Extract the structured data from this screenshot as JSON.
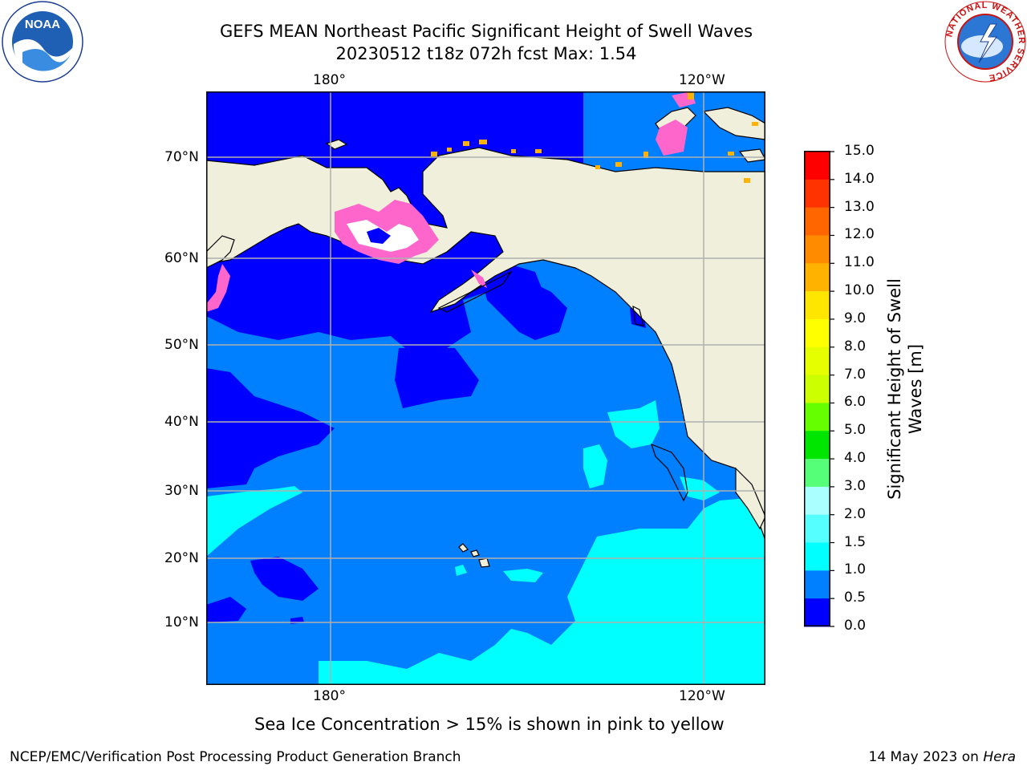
{
  "title_line1": "GEFS MEAN Northeast Pacific Significant Height of Swell Waves",
  "title_line2": "20230512 t18z 072h fcst   Max: 1.54",
  "logos": {
    "left": {
      "name": "noaa-logo",
      "text": "NOAA",
      "ring_text": "NATIONAL OCEANIC AND ATMOSPHERIC ADMINISTRATION · U.S. DEPARTMENT OF COMMERCE"
    },
    "right": {
      "name": "nws-logo",
      "ring_text": "NATIONAL WEATHER SERVICE"
    }
  },
  "map": {
    "lon_labels": [
      "180°",
      "120°W"
    ],
    "lat_labels": [
      "70°N",
      "60°N",
      "50°N",
      "40°N",
      "30°N",
      "20°N",
      "10°N"
    ],
    "colors": {
      "ocean_base": "#0080ff",
      "ocean_low": "#0000ff",
      "ocean_mid": "#00ffff",
      "land": "#efefdc",
      "ice_pink": "#ff66cc",
      "ice_orange": "#ffb300",
      "grid": "#b0b0b0"
    }
  },
  "colorbar": {
    "label": "Significant Height of Swell Waves [m]",
    "ticks": [
      "15.0",
      "14.0",
      "13.0",
      "12.0",
      "11.0",
      "10.0",
      "9.0",
      "8.0",
      "7.0",
      "6.0",
      "5.0",
      "4.0",
      "3.0",
      "2.0",
      "1.5",
      "1.0",
      "0.5",
      "0.0"
    ],
    "colors": [
      "#ff0000",
      "#ff3300",
      "#ff6600",
      "#ff8c00",
      "#ffb300",
      "#ffe600",
      "#ffff00",
      "#e6ff00",
      "#ccff00",
      "#66ff00",
      "#00e600",
      "#55ff77",
      "#aaffff",
      "#55ffff",
      "#00ffff",
      "#0080ff",
      "#0000ff"
    ]
  },
  "note": "Sea Ice Concentration > 15% is shown in pink to yellow",
  "footer_left": "NCEP/EMC/Verification Post Processing Product Generation Branch",
  "footer_right_prefix": "14 May 2023 on ",
  "footer_right_italic": "Hera"
}
